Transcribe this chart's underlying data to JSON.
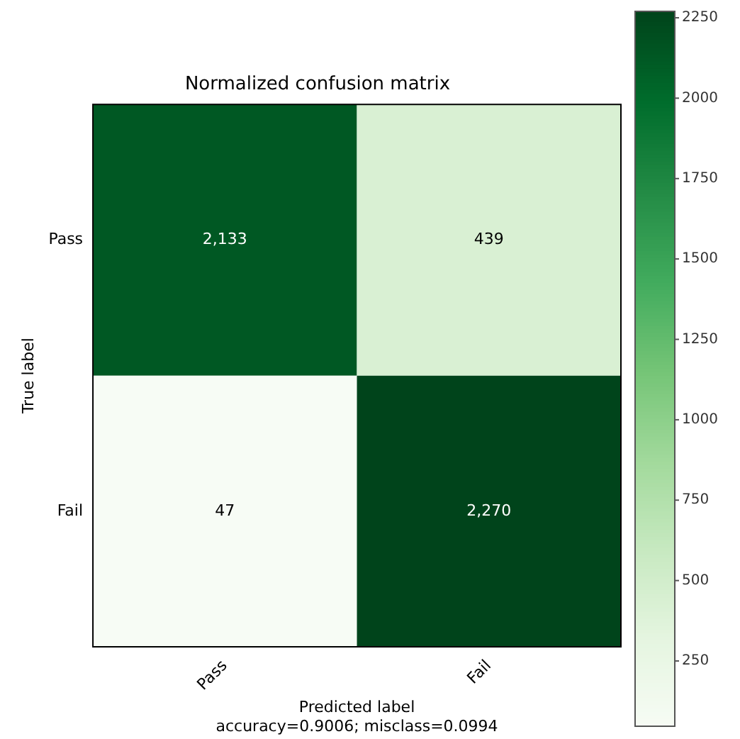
{
  "chart_data": {
    "type": "heatmap",
    "title": "Normalized confusion matrix",
    "xlabel": "Predicted label",
    "ylabel": "True label",
    "categories": [
      "Pass",
      "Fail"
    ],
    "y_categories": [
      "Pass",
      "Fail"
    ],
    "cells": [
      [
        2133,
        439
      ],
      [
        47,
        2270
      ]
    ],
    "cell_labels": [
      [
        "2,133",
        "439"
      ],
      [
        "47",
        "2,270"
      ]
    ],
    "clim": [
      47,
      2270
    ],
    "cticks": [
      250,
      500,
      750,
      1000,
      1250,
      1500,
      1750,
      2000,
      2250
    ],
    "annotations": [
      "accuracy=0.9006; misclass=0.0994"
    ],
    "grid": false
  }
}
